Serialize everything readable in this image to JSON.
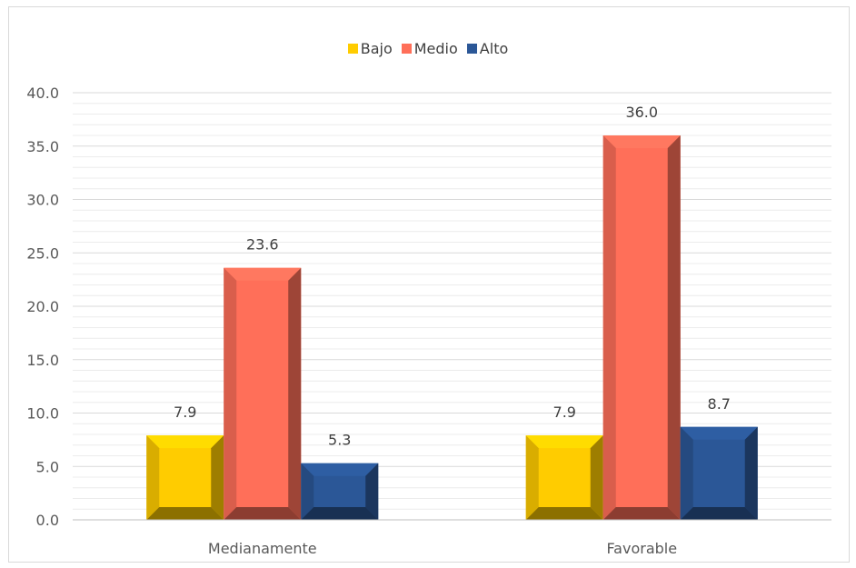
{
  "chart_data": {
    "type": "bar",
    "categories": [
      "Medianamente",
      "Favorable"
    ],
    "series": [
      {
        "name": "Bajo",
        "values": [
          7.9,
          7.9
        ],
        "color": "#ffcc00"
      },
      {
        "name": "Medio",
        "values": [
          23.6,
          36.0
        ],
        "color": "#ff6f59"
      },
      {
        "name": "Alto",
        "values": [
          5.3,
          8.7
        ],
        "color": "#2b5797"
      }
    ],
    "title": "",
    "xlabel": "",
    "ylabel": "",
    "ylim": [
      0,
      40
    ],
    "yticks": [
      "0.0",
      "5.0",
      "10.0",
      "15.0",
      "20.0",
      "25.0",
      "30.0",
      "35.0",
      "40.0"
    ],
    "data_labels": [
      [
        "7.9",
        "7.9"
      ],
      [
        "23.6",
        "36.0"
      ],
      [
        "5.3",
        "8.7"
      ]
    ],
    "grid": true,
    "legend_position": "top"
  }
}
